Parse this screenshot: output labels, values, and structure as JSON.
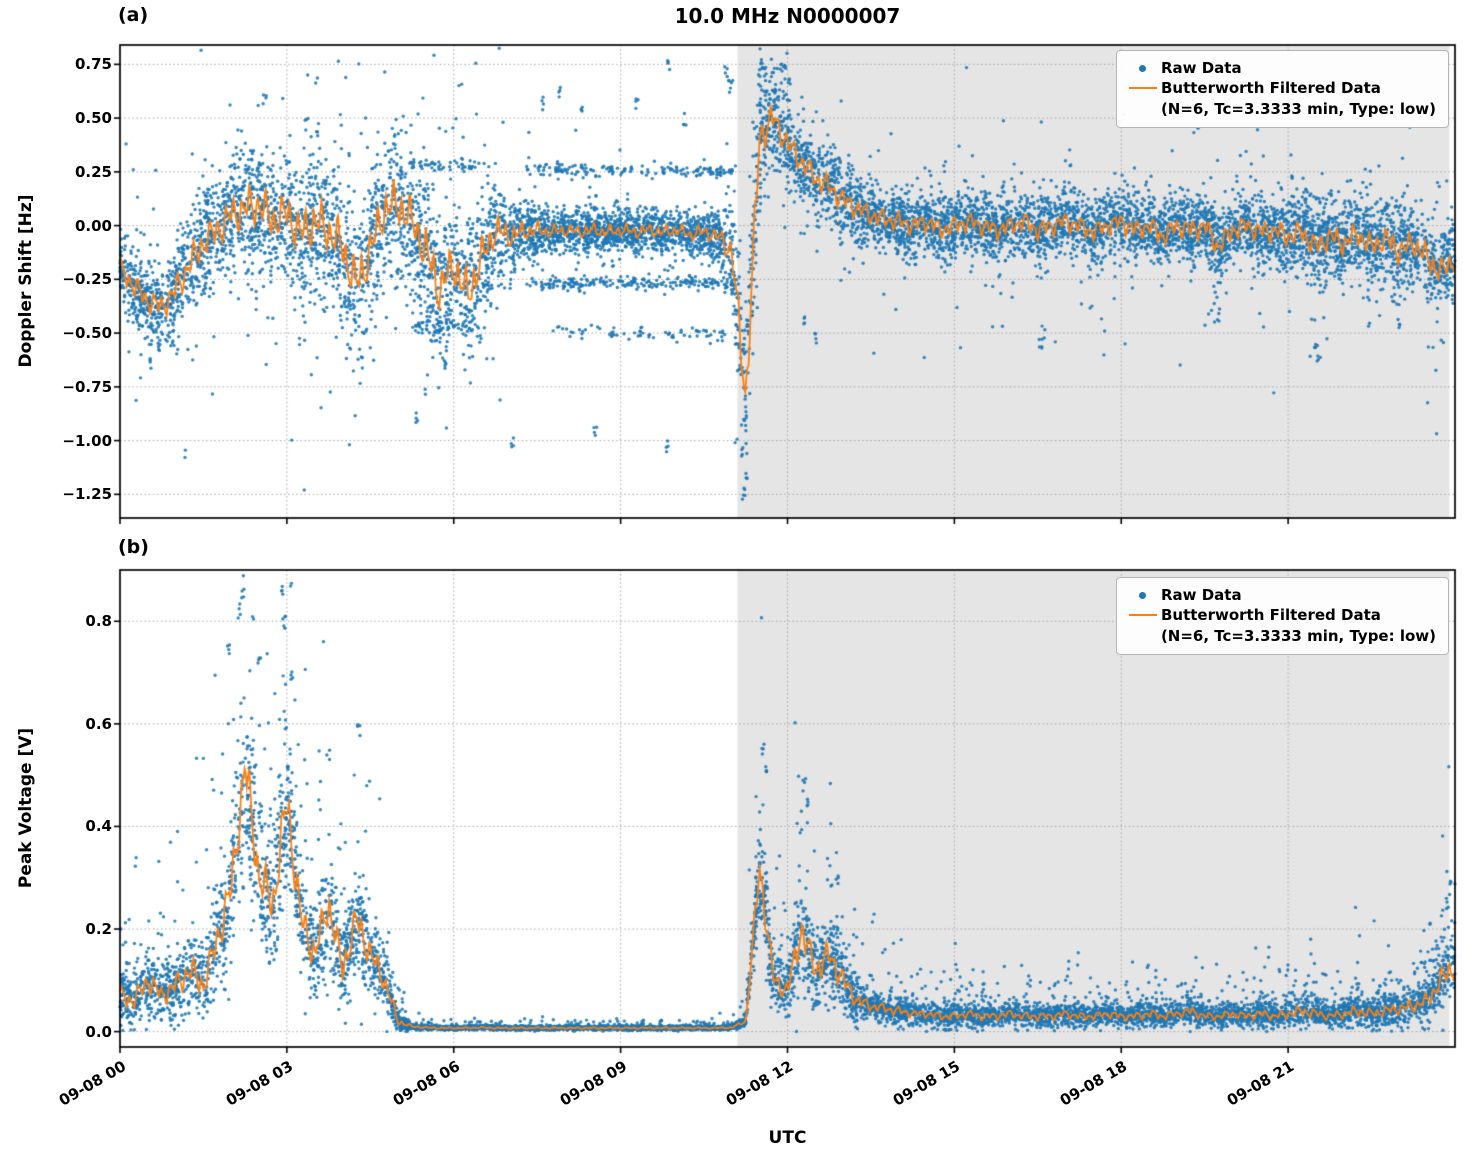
{
  "figure": {
    "title": "10.0 MHz N0000007",
    "xlabel": "UTC",
    "panel_tags": [
      "(a)",
      "(b)"
    ],
    "colors": {
      "raw": "#1f77b4",
      "filtered": "#ff7f0e",
      "shade": "#e5e5e5",
      "grid": "#a6a6a6",
      "axis": "#000000"
    },
    "legend": {
      "raw_label": "Raw Data",
      "filtered_label": "Butterworth Filtered Data",
      "filtered_params": "(N=6, Tc=3.3333 min, Type: low)"
    },
    "x_tick_hours": [
      0,
      3,
      6,
      9,
      12,
      15,
      18,
      21
    ],
    "x_tick_labels": [
      "09-08 00",
      "09-08 03",
      "09-08 06",
      "09-08 09",
      "09-08 12",
      "09-08 15",
      "09-08 18",
      "09-08 21"
    ],
    "shade_region_hours": [
      11.1,
      23.9
    ]
  },
  "panels": [
    {
      "tag": "(a)",
      "ylabel": "Doppler Shift [Hz]",
      "ylim": [
        -1.36,
        0.84
      ],
      "y_tick_values": [
        0.75,
        0.5,
        0.25,
        0,
        -0.25,
        -0.5,
        -0.75,
        -1.0,
        -1.25
      ],
      "y_tick_labels": [
        "0.75",
        "0.50",
        "0.25",
        "0.00",
        "−0.25",
        "−0.50",
        "−0.75",
        "−1.00",
        "−1.25"
      ]
    },
    {
      "tag": "(b)",
      "ylabel": "Peak Voltage [V]",
      "ylim": [
        -0.03,
        0.9
      ],
      "y_tick_values": [
        0,
        0.2,
        0.4,
        0.6,
        0.8
      ],
      "y_tick_labels": [
        "0.0",
        "0.2",
        "0.4",
        "0.6",
        "0.8"
      ]
    }
  ],
  "chart_data": [
    {
      "type": "scatter",
      "panel": "a",
      "title": "10.0 MHz N0000007",
      "xlabel": "UTC",
      "ylabel": "Doppler Shift [Hz]",
      "x_axis": {
        "unit": "hours since 09-08 00:00 UTC",
        "start_hour": 0,
        "step_hour": 0.25,
        "end_hour": 24,
        "tick_hours": [
          0,
          3,
          6,
          9,
          12,
          15,
          18,
          21
        ],
        "tick_labels": [
          "09-08 00",
          "09-08 03",
          "09-08 06",
          "09-08 09",
          "09-08 12",
          "09-08 15",
          "09-08 18",
          "09-08 21"
        ]
      },
      "ylim": [
        -1.36,
        0.84
      ],
      "y_ticks": [
        0.75,
        0.5,
        0.25,
        0,
        -0.25,
        -0.5,
        -0.75,
        -1.0,
        -1.25
      ],
      "grid": true,
      "legend_position": "upper right",
      "shade_region_hours": [
        11.1,
        23.9
      ],
      "series": [
        {
          "name": "Raw Data",
          "style": "scatter",
          "color": "#1f77b4",
          "band_center": "filtered_values",
          "tail": {
            "prob": 0.08,
            "mult": 1.9
          },
          "band_halfwidth": [
            0.12,
            0.15,
            0.15,
            0.15,
            0.18,
            0.2,
            0.2,
            0.22,
            0.22,
            0.25,
            0.25,
            0.25,
            0.25,
            0.28,
            0.28,
            0.28,
            0.3,
            0.3,
            0.3,
            0.28,
            0.28,
            0.28,
            0.3,
            0.3,
            0.28,
            0.28,
            0.25,
            0.2,
            0.15,
            0.12,
            0.1,
            0.08,
            0.08,
            0.08,
            0.08,
            0.08,
            0.08,
            0.08,
            0.08,
            0.08,
            0.08,
            0.08,
            0.09,
            0.1,
            0.2,
            0.35,
            0.25,
            0.18,
            0.16,
            0.15,
            0.15,
            0.14,
            0.14,
            0.13,
            0.13,
            0.12,
            0.12,
            0.12,
            0.12,
            0.12,
            0.12,
            0.12,
            0.12,
            0.12,
            0.12,
            0.12,
            0.12,
            0.12,
            0.12,
            0.12,
            0.12,
            0.12,
            0.12,
            0.13,
            0.13,
            0.13,
            0.13,
            0.13,
            0.13,
            0.14,
            0.13,
            0.13,
            0.13,
            0.13,
            0.14,
            0.14,
            0.15,
            0.14,
            0.15,
            0.14,
            0.15,
            0.15,
            0.16,
            0.15,
            0.16,
            0.17,
            0.16
          ]
        },
        {
          "name": "Butterworth Filtered Data (N=6, Tc=3.3333 min, Type: low)",
          "style": "line",
          "color": "#ff7f0e",
          "values": [
            -0.2,
            -0.28,
            -0.35,
            -0.38,
            -0.3,
            -0.18,
            -0.08,
            -0.02,
            0.05,
            0.08,
            0.1,
            0.02,
            0.06,
            -0.04,
            0.02,
            -0.02,
            -0.1,
            -0.28,
            -0.12,
            0.08,
            0.1,
            0.02,
            -0.12,
            -0.3,
            -0.18,
            -0.33,
            -0.15,
            -0.02,
            -0.05,
            -0.03,
            -0.02,
            -0.03,
            -0.02,
            -0.03,
            -0.02,
            -0.03,
            -0.02,
            -0.03,
            -0.02,
            -0.03,
            -0.02,
            -0.04,
            -0.03,
            -0.05,
            -0.12,
            -0.8,
            0.42,
            0.5,
            0.38,
            0.3,
            0.22,
            0.18,
            0.12,
            0.08,
            0.05,
            0.03,
            0.02,
            0.0,
            0.02,
            -0.02,
            0.0,
            0.02,
            0.0,
            -0.02,
            0.0,
            0.02,
            -0.02,
            0.0,
            0.02,
            0.0,
            -0.03,
            0.0,
            0.02,
            -0.02,
            0.0,
            -0.05,
            0.0,
            -0.02,
            0.0,
            -0.1,
            -0.02,
            0.0,
            -0.03,
            -0.02,
            -0.05,
            -0.03,
            -0.1,
            -0.05,
            -0.08,
            -0.04,
            -0.1,
            -0.06,
            -0.12,
            -0.08,
            -0.15,
            -0.22,
            -0.15
          ]
        }
      ],
      "outlier_rows": [
        {
          "y": 0.26,
          "start": 7.3,
          "end": 11.05,
          "count": 160
        },
        {
          "y": -0.27,
          "start": 7.3,
          "end": 11.05,
          "count": 200
        },
        {
          "y": -0.5,
          "start": 7.7,
          "end": 10.9,
          "count": 70
        },
        {
          "y": 0.28,
          "start": 5.2,
          "end": 6.4,
          "count": 45
        },
        {
          "y": -0.47,
          "start": 5.3,
          "end": 6.5,
          "count": 55
        }
      ],
      "outlier_points": [
        [
          0.55,
          -0.65
        ],
        [
          2.6,
          0.59
        ],
        [
          3.35,
          0.47
        ],
        [
          3.55,
          0.45
        ],
        [
          5.35,
          -0.9
        ],
        [
          7.05,
          -1.02
        ],
        [
          7.6,
          0.57
        ],
        [
          7.9,
          0.62
        ],
        [
          8.3,
          0.55
        ],
        [
          8.55,
          -0.97
        ],
        [
          9.3,
          0.57
        ],
        [
          9.85,
          -1.03
        ],
        [
          9.87,
          0.74
        ],
        [
          10.15,
          0.5
        ],
        [
          10.9,
          0.72
        ],
        [
          10.95,
          0.65
        ],
        [
          11.2,
          -1.05
        ],
        [
          11.22,
          -1.24
        ],
        [
          11.25,
          -1.18
        ],
        [
          11.5,
          0.68
        ],
        [
          11.55,
          0.75
        ],
        [
          11.6,
          0.72
        ],
        [
          11.88,
          0.75
        ],
        [
          11.95,
          0.72
        ],
        [
          12.02,
          0.65
        ],
        [
          12.3,
          -0.45
        ],
        [
          12.5,
          -0.52
        ],
        [
          16.55,
          -0.55
        ],
        [
          16.6,
          -0.5
        ],
        [
          19.75,
          -0.42
        ],
        [
          21.5,
          -0.55
        ],
        [
          21.55,
          -0.6
        ],
        [
          23.0,
          -0.45
        ]
      ]
    },
    {
      "type": "scatter",
      "panel": "b",
      "title": "10.0 MHz N0000007",
      "xlabel": "UTC",
      "ylabel": "Peak Voltage [V]",
      "x_axis": {
        "unit": "hours since 09-08 00:00 UTC",
        "start_hour": 0,
        "step_hour": 0.25,
        "end_hour": 24,
        "tick_hours": [
          0,
          3,
          6,
          9,
          12,
          15,
          18,
          21
        ],
        "tick_labels": [
          "09-08 00",
          "09-08 03",
          "09-08 06",
          "09-08 09",
          "09-08 12",
          "09-08 15",
          "09-08 18",
          "09-08 21"
        ]
      },
      "ylim": [
        -0.03,
        0.9
      ],
      "y_ticks": [
        0,
        0.2,
        0.4,
        0.6,
        0.8
      ],
      "grid": true,
      "legend_position": "upper right",
      "shade_region_hours": [
        11.1,
        23.9
      ],
      "series": [
        {
          "name": "Raw Data",
          "style": "scatter",
          "color": "#1f77b4",
          "band_center": "filtered_values",
          "tail": {
            "prob": 0.1,
            "mult": 2.3
          },
          "band_halfwidth": [
            0.05,
            0.05,
            0.06,
            0.05,
            0.06,
            0.08,
            0.07,
            0.1,
            0.12,
            0.15,
            0.12,
            0.12,
            0.15,
            0.1,
            0.09,
            0.1,
            0.08,
            0.09,
            0.08,
            0.06,
            0.02,
            0.006,
            0.004,
            0.004,
            0.004,
            0.004,
            0.004,
            0.004,
            0.004,
            0.004,
            0.004,
            0.004,
            0.004,
            0.004,
            0.004,
            0.004,
            0.004,
            0.004,
            0.004,
            0.004,
            0.004,
            0.004,
            0.004,
            0.004,
            0.004,
            0.01,
            0.1,
            0.06,
            0.05,
            0.1,
            0.07,
            0.08,
            0.06,
            0.04,
            0.03,
            0.025,
            0.025,
            0.02,
            0.02,
            0.02,
            0.02,
            0.02,
            0.02,
            0.02,
            0.02,
            0.02,
            0.02,
            0.02,
            0.02,
            0.02,
            0.02,
            0.02,
            0.02,
            0.02,
            0.025,
            0.02,
            0.02,
            0.025,
            0.02,
            0.02,
            0.02,
            0.02,
            0.025,
            0.02,
            0.025,
            0.03,
            0.025,
            0.02,
            0.025,
            0.03,
            0.025,
            0.03,
            0.03,
            0.035,
            0.04,
            0.06,
            0.08
          ]
        },
        {
          "name": "Butterworth Filtered Data (N=6, Tc=3.3333 min, Type: low)",
          "style": "line",
          "color": "#ff7f0e",
          "values": [
            0.07,
            0.06,
            0.1,
            0.07,
            0.09,
            0.12,
            0.09,
            0.18,
            0.28,
            0.52,
            0.3,
            0.25,
            0.45,
            0.22,
            0.15,
            0.25,
            0.12,
            0.22,
            0.15,
            0.1,
            0.02,
            0.01,
            0.008,
            0.007,
            0.007,
            0.007,
            0.008,
            0.007,
            0.007,
            0.007,
            0.007,
            0.007,
            0.007,
            0.007,
            0.007,
            0.007,
            0.007,
            0.007,
            0.007,
            0.007,
            0.007,
            0.007,
            0.007,
            0.007,
            0.008,
            0.02,
            0.32,
            0.1,
            0.08,
            0.2,
            0.12,
            0.15,
            0.1,
            0.06,
            0.05,
            0.045,
            0.04,
            0.035,
            0.035,
            0.03,
            0.03,
            0.035,
            0.03,
            0.03,
            0.035,
            0.03,
            0.03,
            0.03,
            0.035,
            0.03,
            0.03,
            0.035,
            0.03,
            0.03,
            0.035,
            0.03,
            0.035,
            0.04,
            0.03,
            0.03,
            0.035,
            0.03,
            0.035,
            0.03,
            0.035,
            0.04,
            0.035,
            0.03,
            0.035,
            0.04,
            0.035,
            0.04,
            0.045,
            0.05,
            0.06,
            0.1,
            0.13
          ]
        }
      ],
      "outlier_rows": [],
      "outlier_points": [
        [
          1.95,
          0.75
        ],
        [
          2.15,
          0.82
        ],
        [
          2.2,
          0.85
        ],
        [
          2.5,
          0.72
        ],
        [
          2.9,
          0.86
        ],
        [
          2.95,
          0.8
        ],
        [
          3.1,
          0.7
        ],
        [
          4.3,
          0.59
        ],
        [
          11.55,
          0.55
        ],
        [
          11.6,
          0.52
        ],
        [
          12.3,
          0.48
        ],
        [
          12.35,
          0.45
        ],
        [
          12.9,
          0.3
        ],
        [
          23.85,
          0.25
        ],
        [
          23.9,
          0.28
        ]
      ]
    }
  ]
}
